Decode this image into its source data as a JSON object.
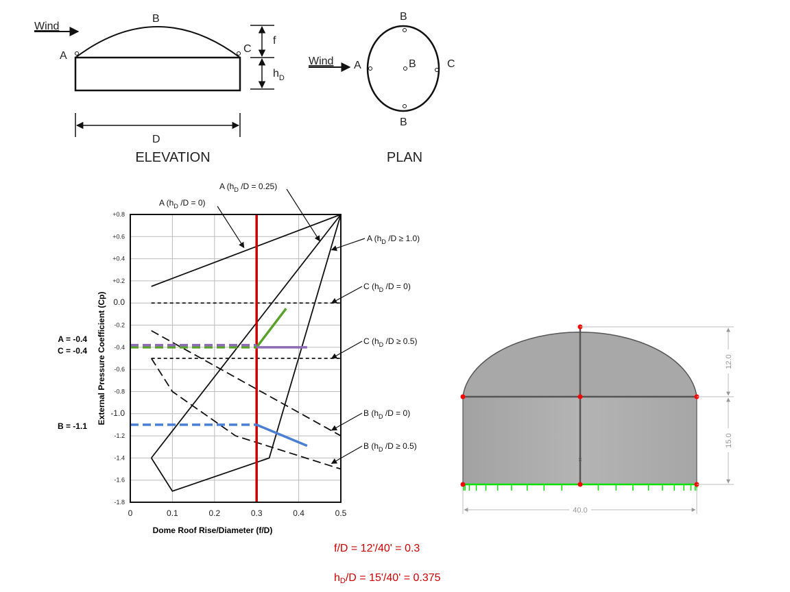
{
  "elevation": {
    "title": "ELEVATION",
    "wind": "Wind",
    "points": {
      "a": "A",
      "b": "B",
      "c": "C"
    },
    "dims": {
      "f": "f",
      "h": "h",
      "h_sub": "D",
      "d": "D"
    }
  },
  "plan": {
    "title": "PLAN",
    "wind": "Wind",
    "points": {
      "a": "A",
      "b_top": "B",
      "b_center": "B",
      "b_bottom": "B",
      "c": "C"
    }
  },
  "chart_data": {
    "type": "line",
    "xlabel": "Dome Roof Rise/Diameter (f/D)",
    "ylabel": "External Pressure Coefficient (Cp)",
    "xlim": [
      0,
      0.5
    ],
    "ylim": [
      -1.8,
      0.8
    ],
    "xticks": [
      "0",
      "0.1",
      "0.2",
      "0.3",
      "0.4",
      "0.5"
    ],
    "xtick_values": [
      0,
      0.1,
      0.2,
      0.3,
      0.4,
      0.5
    ],
    "yticks": [
      "+0.8",
      "+0.6",
      "+0.4",
      "+0.2",
      "0.0",
      "-0.2",
      "-0.4",
      "-0.6",
      "-0.8",
      "-1.0",
      "-1.2",
      "-1.4",
      "-1.6",
      "-1.8"
    ],
    "ytick_values": [
      0.8,
      0.6,
      0.4,
      0.2,
      0,
      -0.2,
      -0.4,
      -0.6,
      -0.8,
      -1.0,
      -1.2,
      -1.4,
      -1.6,
      -1.8
    ],
    "grid": true,
    "series": [
      {
        "label_pre": "A (h",
        "label_sub": "D",
        "label_post": " /D = 0)",
        "style": "solid",
        "color": "#111111",
        "points": [
          [
            0.05,
            0.15
          ],
          [
            0.5,
            0.8
          ]
        ],
        "arrow_to": [
          0.27,
          0.5
        ]
      },
      {
        "label_pre": "A (h",
        "label_sub": "D",
        "label_post": " /D = 0.25)",
        "style": "solid",
        "color": "#111111",
        "points": [
          [
            0.05,
            -1.4
          ],
          [
            0.5,
            0.8
          ]
        ],
        "arrow_to": [
          0.45,
          0.56
        ]
      },
      {
        "label_pre": "A (h",
        "label_sub": "D",
        "label_post": " /D ≥ 1.0)",
        "style": "solid",
        "color": "#111111",
        "points": [
          [
            0.05,
            -1.4
          ],
          [
            0.1,
            -1.7
          ],
          [
            0.33,
            -1.4
          ],
          [
            0.5,
            0.8
          ]
        ],
        "arrow_to": [
          0.478,
          0.48
        ]
      },
      {
        "label_pre": "C (h",
        "label_sub": "D",
        "label_post": " /D = 0)",
        "style": "dashed",
        "color": "#111111",
        "points": [
          [
            0.05,
            0
          ],
          [
            0.5,
            0
          ]
        ],
        "arrow_to": [
          0.478,
          0
        ]
      },
      {
        "label_pre": "C (h",
        "label_sub": "D",
        "label_post": " /D ≥ 0.5)",
        "style": "dashed",
        "color": "#111111",
        "points": [
          [
            0.05,
            -0.5
          ],
          [
            0.5,
            -0.5
          ]
        ],
        "arrow_to": [
          0.478,
          -0.5
        ]
      },
      {
        "label_pre": "B (h",
        "label_sub": "D",
        "label_post": " /D = 0)",
        "style": "dashed",
        "color": "#111111",
        "points": [
          [
            0.05,
            -0.25
          ],
          [
            0.5,
            -1.2
          ]
        ],
        "arrow_to": [
          0.478,
          -1.15
        ]
      },
      {
        "label_pre": "B (h",
        "label_sub": "D",
        "label_post": " /D ≥ 0.5)",
        "style": "dashed",
        "color": "#111111",
        "points": [
          [
            0.05,
            -0.5
          ],
          [
            0.1,
            -0.8
          ],
          [
            0.25,
            -1.2
          ],
          [
            0.5,
            -1.5
          ]
        ],
        "arrow_to": [
          0.478,
          -1.45
        ]
      }
    ],
    "overlays": [
      {
        "name": "f-over-d-marker",
        "color": "#cc0000",
        "points": [
          [
            0.3,
            0.8
          ],
          [
            0.3,
            -1.8
          ]
        ],
        "style": "solid"
      },
      {
        "name": "a-reading",
        "color": "#5aa02c",
        "dashed": [
          [
            0,
            -0.4
          ],
          [
            0.3,
            -0.4
          ]
        ],
        "solid": [
          [
            0.3,
            -0.4
          ],
          [
            0.37,
            -0.05
          ]
        ]
      },
      {
        "name": "c-reading",
        "color": "#8e6bb5",
        "dashed": [
          [
            0,
            -0.38
          ],
          [
            0.3,
            -0.38
          ]
        ],
        "solid": [
          [
            0.3,
            -0.4
          ],
          [
            0.42,
            -0.4
          ]
        ]
      },
      {
        "name": "b-reading",
        "color": "#4a7fd4",
        "dashed": [
          [
            0,
            -1.1
          ],
          [
            0.3,
            -1.1
          ]
        ],
        "solid": [
          [
            0.3,
            -1.1
          ],
          [
            0.42,
            -1.29
          ]
        ]
      }
    ],
    "readouts": [
      {
        "text": "A = -0.4",
        "color": "#3f7f1f"
      },
      {
        "text": "C = -0.4",
        "color": "#8e6bb5"
      },
      {
        "text": "B = -1.1",
        "color": "#4a7fd4"
      }
    ]
  },
  "model": {
    "dim_rise": "12.0",
    "dim_wall": "15.0",
    "dim_diameter": "40.0",
    "fill": "#a9a9a9",
    "node_color": "#ff0000",
    "support_color": "#00e000"
  },
  "formulas": {
    "f_over_d": "f/D = 12'/40' = 0.3",
    "h_over_d_pre": "h",
    "h_over_d_sub": "D",
    "h_over_d_post": "/D = 15'/40' = 0.375",
    "color": "#cc0000"
  }
}
